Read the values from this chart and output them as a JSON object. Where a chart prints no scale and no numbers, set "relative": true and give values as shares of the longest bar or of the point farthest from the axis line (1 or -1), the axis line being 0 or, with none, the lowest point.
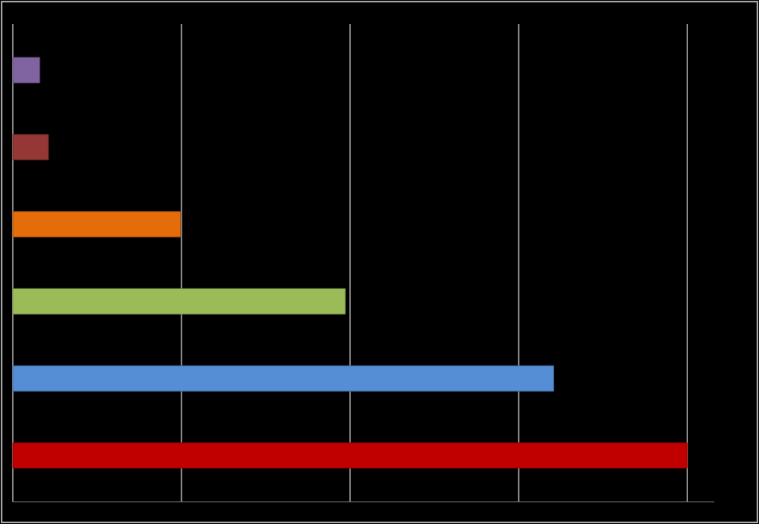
{
  "chart_data": {
    "type": "bar",
    "orientation": "horizontal",
    "relative": true,
    "grid": "x",
    "categories": [
      null,
      null,
      null,
      null,
      null,
      null
    ],
    "values": [
      0.04,
      0.053,
      0.249,
      0.493,
      0.802,
      1
    ],
    "colors": [
      "#8064a2",
      "#953735",
      "#e46c0a",
      "#9bbb59",
      "#558ed5",
      "#c00000"
    ]
  }
}
